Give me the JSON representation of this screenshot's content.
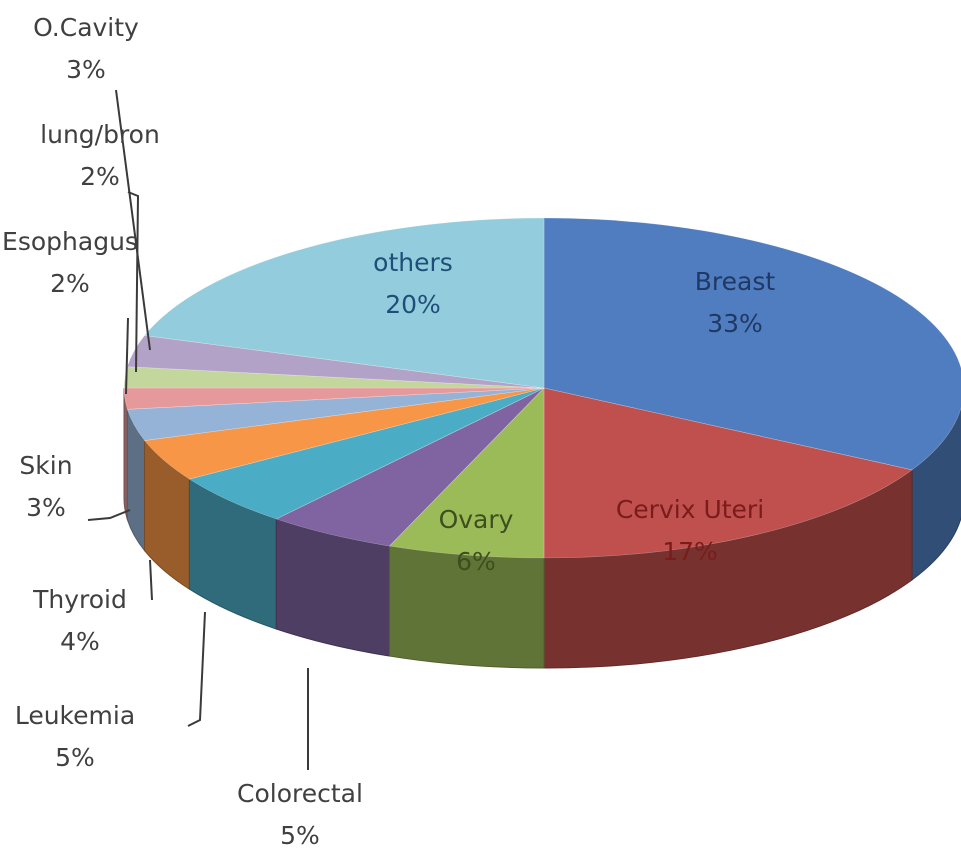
{
  "chart_data": {
    "type": "pie",
    "title": "",
    "slices": [
      {
        "label": "Breast",
        "value": 33,
        "value_label": "33%",
        "color": "#4f7dbf",
        "label_color": "#1f3864"
      },
      {
        "label": "Cervix Uteri",
        "value": 17,
        "value_label": "17%",
        "color": "#c0504d",
        "label_color": "#7a1c1a"
      },
      {
        "label": "Ovary",
        "value": 6,
        "value_label": "6%",
        "color": "#9bbb59",
        "label_color": "#3d4f1c"
      },
      {
        "label": "Colorectal",
        "value": 5,
        "value_label": "5%",
        "color": "#8064a2",
        "label_color": "#404040"
      },
      {
        "label": "Leukemia",
        "value": 5,
        "value_label": "5%",
        "color": "#4bacc6",
        "label_color": "#404040"
      },
      {
        "label": "Thyroid",
        "value": 4,
        "value_label": "4%",
        "color": "#f79646",
        "label_color": "#404040"
      },
      {
        "label": "Skin",
        "value": 3,
        "value_label": "3%",
        "color": "#95b3d7",
        "label_color": "#404040"
      },
      {
        "label": "Esophagus",
        "value": 2,
        "value_label": "2%",
        "color": "#e6999a",
        "label_color": "#404040"
      },
      {
        "label": "lung/bron",
        "value": 2,
        "value_label": "2%",
        "color": "#c3d69b",
        "label_color": "#404040"
      },
      {
        "label": "O.Cavity",
        "value": 3,
        "value_label": "3%",
        "color": "#b3a2c7",
        "label_color": "#404040"
      },
      {
        "label": "others",
        "value": 20,
        "value_label": "20%",
        "color": "#93cddd",
        "label_color": "#1f4e79"
      }
    ],
    "start_angle_deg": -90,
    "direction": "clockwise",
    "style": "3d-tilted",
    "legend": "none"
  }
}
